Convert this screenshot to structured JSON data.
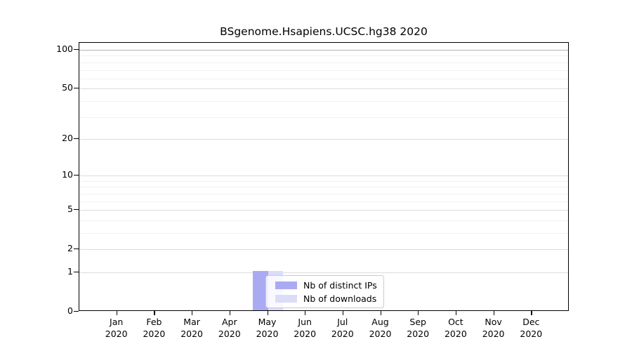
{
  "chart_data": {
    "type": "bar",
    "title": "BSgenome.Hsapiens.UCSC.hg38 2020",
    "categories": [
      "Jan 2020",
      "Feb 2020",
      "Mar 2020",
      "Apr 2020",
      "May 2020",
      "Jun 2020",
      "Jul 2020",
      "Aug 2020",
      "Sep 2020",
      "Oct 2020",
      "Nov 2020",
      "Dec 2020"
    ],
    "x_months": [
      "Jan",
      "Feb",
      "Mar",
      "Apr",
      "May",
      "Jun",
      "Jul",
      "Aug",
      "Sep",
      "Oct",
      "Nov",
      "Dec"
    ],
    "x_year": "2020",
    "series": [
      {
        "name": "Nb of distinct IPs",
        "color": "#aaaaf2",
        "values": [
          0,
          0,
          0,
          0,
          1,
          0,
          0,
          0,
          0,
          0,
          0,
          0
        ]
      },
      {
        "name": "Nb of downloads",
        "color": "#dbdcf8",
        "values": [
          0,
          0,
          0,
          0,
          1,
          0,
          0,
          0,
          0,
          0,
          0,
          0
        ]
      }
    ],
    "y_axis": {
      "scale": "log1p",
      "ticks": [
        0,
        1,
        2,
        5,
        10,
        20,
        50,
        100
      ],
      "minor_gridlines": [
        3,
        4,
        6,
        7,
        8,
        9,
        30,
        40,
        60,
        70,
        80,
        90
      ],
      "ylim": [
        0,
        113
      ]
    },
    "grid": "horizontal",
    "legend_position": "inside-bottom-left-of-center",
    "colors": {
      "gridline_minor": "#f1f1f1",
      "gridline_major": "#dcdcdc",
      "gridline_top": "#b3b3b3",
      "axis": "#000000",
      "legend_border": "#cccccc"
    }
  }
}
